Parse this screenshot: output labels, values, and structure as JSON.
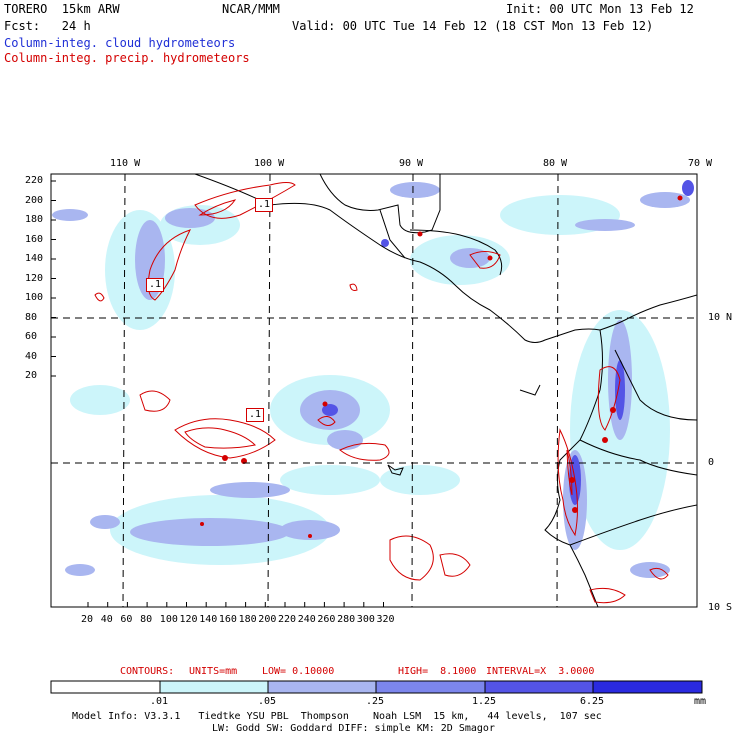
{
  "header": {
    "model": "TORERO  15km ARW",
    "org": "NCAR/MMM",
    "init": "Init: 00 UTC Mon 13 Feb 12",
    "fcst": "Fcst:   24 h",
    "valid": "Valid: 00 UTC Tue 14 Feb 12 (18 CST Mon 13 Feb 12)",
    "legend_cloud": "Column-integ. cloud hydrometeors",
    "legend_precip": "Column-integ. precip. hydrometeors"
  },
  "map": {
    "top_lon_labels": [
      "110 W",
      "100 W",
      "90 W",
      "80 W",
      "70 W"
    ],
    "right_lat_labels": [
      "10 N",
      "0",
      "10 S"
    ],
    "y_ticks": [
      "220",
      "200",
      "180",
      "160",
      "140",
      "120",
      "100",
      "80",
      "60",
      "40",
      "20"
    ],
    "x_ticks": [
      "20",
      "40",
      "60",
      "80",
      "100",
      "120",
      "140",
      "160",
      "180",
      "200",
      "220",
      "240",
      "260",
      "280",
      "300",
      "320"
    ],
    "contour_labels": [
      ".1",
      ".1",
      ".1"
    ]
  },
  "contours_info": {
    "label": "CONTOURS:",
    "units": "UNITS=mm",
    "low": "LOW= 0.10000",
    "high": "HIGH=  8.1000",
    "interval": "INTERVAL=X  3.0000"
  },
  "colorbar": {
    "levels": [
      ".01",
      ".05",
      ".25",
      "1.25",
      "6.25"
    ],
    "unit": "mm",
    "colors": [
      "#ffffff",
      "#ccf5fa",
      "#a9b6f0",
      "#7c86ec",
      "#5454e6",
      "#2a2ae0"
    ]
  },
  "footer": {
    "line1": "Model Info: V3.3.1   Tiedtke YSU PBL  Thompson    Noah LSM  15 km,   44 levels,  107 sec",
    "line2": "LW: Godd SW: Goddard DIFF: simple KM: 2D Smagor"
  },
  "colors": {
    "cloud": "#1f2fd6",
    "precip": "#d40000",
    "coast": "#000000"
  }
}
